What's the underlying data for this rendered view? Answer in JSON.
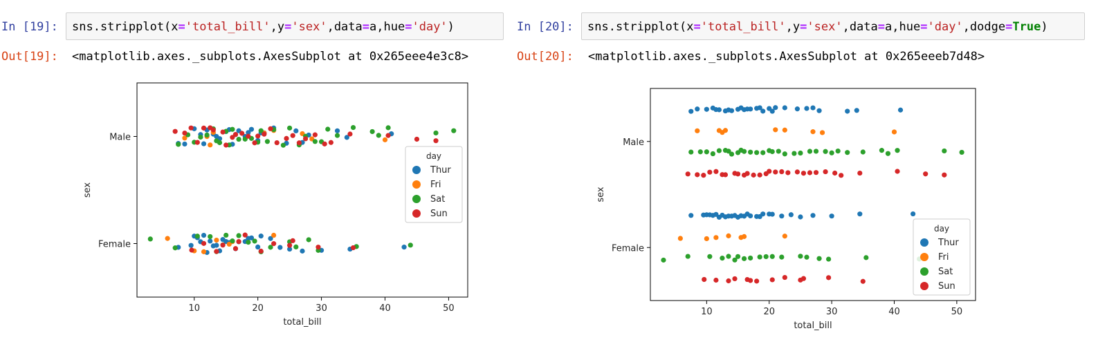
{
  "cells": [
    {
      "in_prompt": "In [19]:",
      "code_tokens": [
        {
          "t": "sns.stripplot(",
          "c": "name"
        },
        {
          "t": "x",
          "c": "name"
        },
        {
          "t": "=",
          "c": "op"
        },
        {
          "t": "'total_bill'",
          "c": "str"
        },
        {
          "t": ",",
          "c": "punct"
        },
        {
          "t": "y",
          "c": "name"
        },
        {
          "t": "=",
          "c": "op"
        },
        {
          "t": "'sex'",
          "c": "str"
        },
        {
          "t": ",",
          "c": "punct"
        },
        {
          "t": "data",
          "c": "name"
        },
        {
          "t": "=",
          "c": "op"
        },
        {
          "t": "a",
          "c": "name"
        },
        {
          "t": ",",
          "c": "punct"
        },
        {
          "t": "hue",
          "c": "name"
        },
        {
          "t": "=",
          "c": "op"
        },
        {
          "t": "'day'",
          "c": "str"
        },
        {
          "t": ")",
          "c": "punct"
        }
      ],
      "out_prompt": "Out[19]:",
      "out_text": "<matplotlib.axes._subplots.AxesSubplot at 0x265eee4e3c8>"
    },
    {
      "in_prompt": "In [20]:",
      "code_tokens": [
        {
          "t": "sns.stripplot(",
          "c": "name"
        },
        {
          "t": "x",
          "c": "name"
        },
        {
          "t": "=",
          "c": "op"
        },
        {
          "t": "'total_bill'",
          "c": "str"
        },
        {
          "t": ",",
          "c": "punct"
        },
        {
          "t": "y",
          "c": "name"
        },
        {
          "t": "=",
          "c": "op"
        },
        {
          "t": "'sex'",
          "c": "str"
        },
        {
          "t": ",",
          "c": "punct"
        },
        {
          "t": "data",
          "c": "name"
        },
        {
          "t": "=",
          "c": "op"
        },
        {
          "t": "a",
          "c": "name"
        },
        {
          "t": ",",
          "c": "punct"
        },
        {
          "t": "hue",
          "c": "name"
        },
        {
          "t": "=",
          "c": "op"
        },
        {
          "t": "'day'",
          "c": "str"
        },
        {
          "t": ",",
          "c": "punct"
        },
        {
          "t": "dodge",
          "c": "name"
        },
        {
          "t": "=",
          "c": "op"
        },
        {
          "t": "True",
          "c": "kw"
        },
        {
          "t": ")",
          "c": "punct"
        }
      ],
      "out_prompt": "Out[20]:",
      "out_text": "<matplotlib.axes._subplots.AxesSubplot at 0x265eeeb7d48>"
    }
  ],
  "colors": {
    "Thur": "#1f77b4",
    "Fri": "#ff7f0e",
    "Sat": "#2ca02c",
    "Sun": "#d62728"
  },
  "chart_data": [
    {
      "type": "scatter",
      "subtype": "stripplot",
      "xlabel": "total_bill",
      "ylabel": "sex",
      "xlim": [
        1,
        53
      ],
      "xticks": [
        10,
        20,
        30,
        40,
        50
      ],
      "categories": [
        "Male",
        "Female"
      ],
      "dodge": false,
      "legend": {
        "title": "day",
        "placement": "right",
        "entries": [
          "Thur",
          "Fri",
          "Sat",
          "Sun"
        ]
      },
      "series": [
        {
          "name": "Thur",
          "Male": [
            7.5,
            8.5,
            10.0,
            11.0,
            11.5,
            12.0,
            13.0,
            13.5,
            14.0,
            15.0,
            15.5,
            16.0,
            16.5,
            17.0,
            18.0,
            18.5,
            19.0,
            20.0,
            20.5,
            21.0,
            22.5,
            24.5,
            26.0,
            27.0,
            28.0,
            32.5,
            34.0,
            41.0
          ],
          "Female": [
            7.5,
            9.5,
            10.0,
            10.5,
            11.0,
            11.5,
            12.0,
            12.5,
            13.0,
            13.5,
            14.0,
            14.5,
            15.0,
            15.5,
            16.0,
            16.5,
            17.0,
            18.0,
            18.5,
            19.0,
            20.0,
            20.5,
            22.0,
            23.5,
            25.0,
            27.0,
            30.0,
            34.5,
            43.0
          ]
        },
        {
          "name": "Fri",
          "Male": [
            8.5,
            12.0,
            12.5,
            13.0,
            21.0,
            22.5,
            27.0,
            28.5,
            40.0
          ],
          "Female": [
            5.8,
            10.0,
            11.5,
            13.5,
            15.5,
            16.0,
            22.5
          ]
        },
        {
          "name": "Sat",
          "Male": [
            7.5,
            9.0,
            10.0,
            11.0,
            12.0,
            13.0,
            13.5,
            14.0,
            15.0,
            15.5,
            16.0,
            17.0,
            18.0,
            19.0,
            20.0,
            20.5,
            21.5,
            22.5,
            24.0,
            25.0,
            26.5,
            27.5,
            29.0,
            30.0,
            31.0,
            32.5,
            35.0,
            38.0,
            39.0,
            40.5,
            48.0,
            50.8
          ],
          "Female": [
            3.1,
            7.0,
            10.5,
            12.5,
            13.5,
            14.5,
            15.0,
            16.0,
            17.0,
            18.5,
            19.5,
            20.5,
            22.0,
            25.0,
            26.0,
            28.0,
            29.5,
            35.5,
            44.0
          ]
        },
        {
          "name": "Sun",
          "Male": [
            7.0,
            8.5,
            9.5,
            10.5,
            11.5,
            12.5,
            13.0,
            14.5,
            15.0,
            16.0,
            16.5,
            17.5,
            18.5,
            19.5,
            20.0,
            21.0,
            22.0,
            23.0,
            24.5,
            25.5,
            26.5,
            27.5,
            29.0,
            30.5,
            31.5,
            34.5,
            40.5,
            45.0,
            48.0
          ],
          "Female": [
            9.6,
            11.5,
            13.5,
            14.5,
            16.5,
            17.0,
            18.0,
            20.5,
            22.5,
            25.0,
            25.5,
            29.5,
            35.0
          ]
        }
      ]
    },
    {
      "type": "scatter",
      "subtype": "stripplot",
      "xlabel": "total_bill",
      "ylabel": "sex",
      "xlim": [
        1,
        53
      ],
      "xticks": [
        10,
        20,
        30,
        40,
        50
      ],
      "categories": [
        "Male",
        "Female"
      ],
      "dodge": true,
      "legend": {
        "title": "day",
        "placement": "lower right",
        "entries": [
          "Thur",
          "Fri",
          "Sat",
          "Sun"
        ]
      },
      "series": [
        {
          "name": "Thur",
          "Male": [
            7.5,
            8.5,
            10.0,
            11.0,
            11.5,
            12.0,
            13.0,
            13.5,
            14.0,
            15.0,
            15.5,
            16.0,
            16.5,
            17.0,
            18.0,
            18.5,
            19.0,
            20.0,
            20.5,
            21.0,
            22.5,
            24.5,
            26.0,
            27.0,
            28.0,
            32.5,
            34.0,
            41.0
          ],
          "Female": [
            7.5,
            9.5,
            10.0,
            10.5,
            11.0,
            11.5,
            12.0,
            12.5,
            13.0,
            13.5,
            14.0,
            14.5,
            15.0,
            15.5,
            16.0,
            16.5,
            17.0,
            18.0,
            18.5,
            19.0,
            20.0,
            20.5,
            22.0,
            23.5,
            25.0,
            27.0,
            30.0,
            34.5,
            43.0
          ]
        },
        {
          "name": "Fri",
          "Male": [
            8.5,
            12.0,
            12.5,
            13.0,
            21.0,
            22.5,
            27.0,
            28.5,
            40.0
          ],
          "Female": [
            5.8,
            10.0,
            11.5,
            13.5,
            15.5,
            16.0,
            22.5
          ]
        },
        {
          "name": "Sat",
          "Male": [
            7.5,
            9.0,
            10.0,
            11.0,
            12.0,
            13.0,
            13.5,
            14.0,
            15.0,
            15.5,
            16.0,
            17.0,
            18.0,
            19.0,
            20.0,
            20.5,
            21.5,
            22.5,
            24.0,
            25.0,
            26.5,
            27.5,
            29.0,
            30.0,
            31.0,
            32.5,
            35.0,
            38.0,
            39.0,
            40.5,
            48.0,
            50.8
          ],
          "Female": [
            3.1,
            7.0,
            10.5,
            12.5,
            13.5,
            14.5,
            15.0,
            16.0,
            17.0,
            18.5,
            19.5,
            20.5,
            22.0,
            25.0,
            26.0,
            28.0,
            29.5,
            35.5,
            44.0
          ]
        },
        {
          "name": "Sun",
          "Male": [
            7.0,
            8.5,
            9.5,
            10.5,
            11.5,
            12.5,
            13.0,
            14.5,
            15.0,
            16.0,
            16.5,
            17.5,
            18.5,
            19.5,
            20.0,
            21.0,
            22.0,
            23.0,
            24.5,
            25.5,
            26.5,
            27.5,
            29.0,
            30.5,
            31.5,
            34.5,
            40.5,
            45.0,
            48.0
          ],
          "Female": [
            9.6,
            11.5,
            13.5,
            14.5,
            16.5,
            17.0,
            18.0,
            20.5,
            22.5,
            25.0,
            25.5,
            29.5,
            35.0
          ]
        }
      ]
    }
  ]
}
